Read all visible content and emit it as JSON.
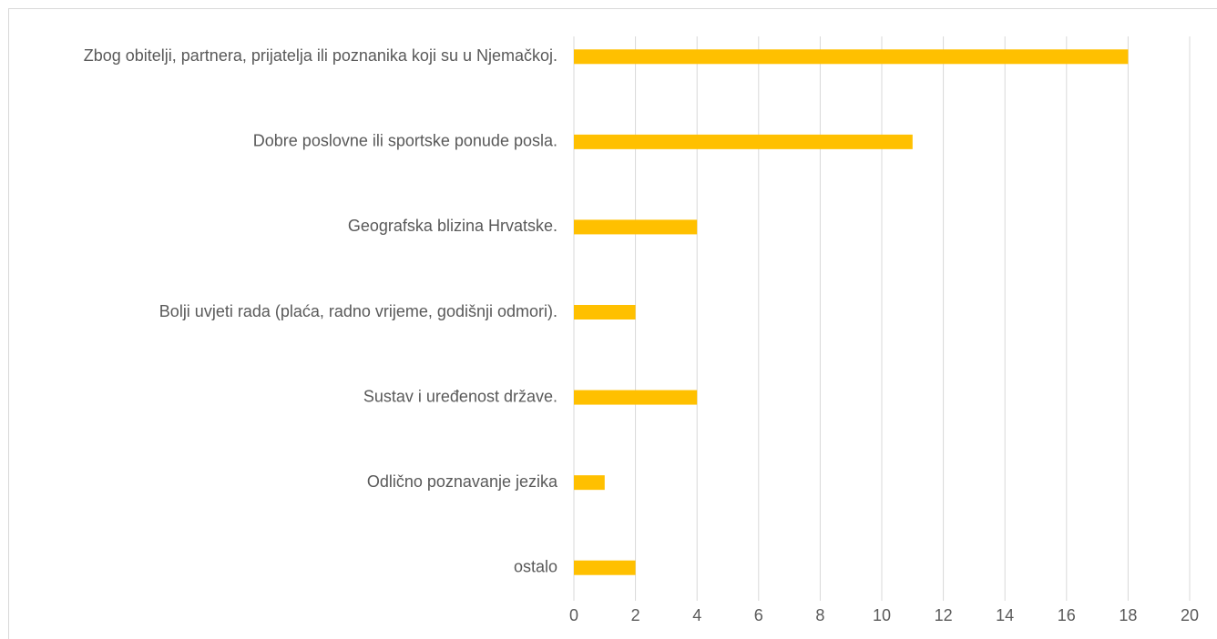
{
  "chart_data": {
    "type": "bar",
    "orientation": "horizontal",
    "categories": [
      "Zbog obitelji, partnera, prijatelja ili poznanika koji su u Njemačkoj.",
      "Dobre poslovne ili sportske ponude posla.",
      "Geografska blizina Hrvatske.",
      "Bolji uvjeti rada (plaća, radno vrijeme, godišnji odmori).",
      "Sustav i uređenost države.",
      "Odlično poznavanje jezika",
      "ostalo"
    ],
    "values": [
      18,
      11,
      4,
      2,
      4,
      1,
      2
    ],
    "color": "#ffc000",
    "xlim": [
      0,
      20
    ],
    "xticks": [
      0,
      2,
      4,
      6,
      8,
      10,
      12,
      14,
      16,
      18,
      20
    ],
    "grid": true
  }
}
